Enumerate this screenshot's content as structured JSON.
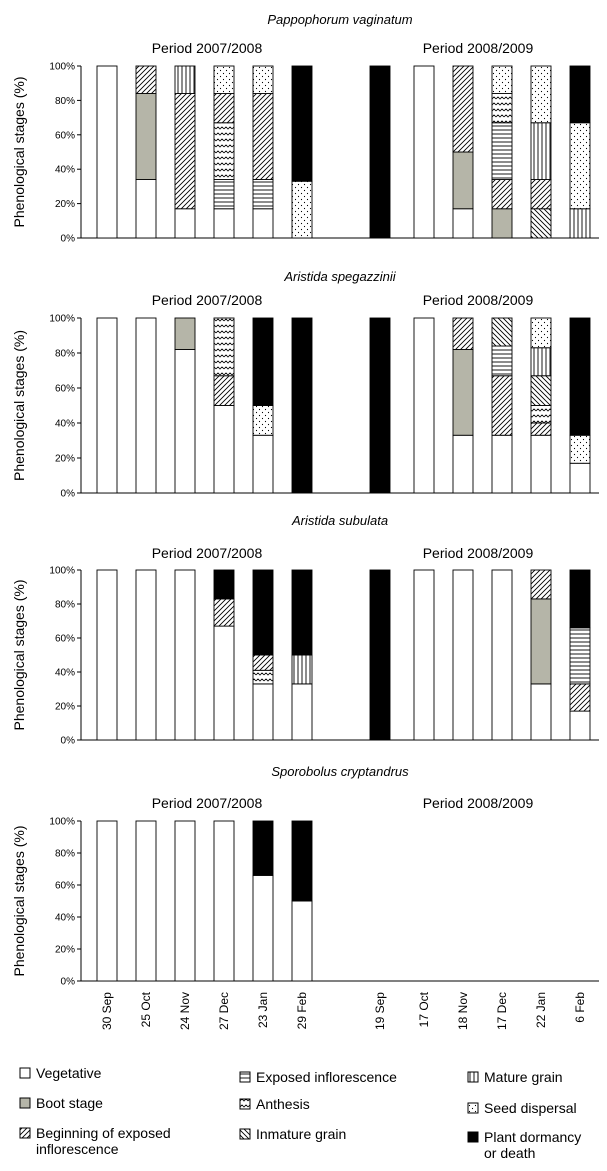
{
  "figure": {
    "dates": [
      "30 Sep",
      "25 Oct",
      "24 Nov",
      "27 Dec",
      "23 Jan",
      "29 Feb",
      "19 Sep",
      "17 Oct",
      "18 Nov",
      "17 Dec",
      "22 Jan",
      "6 Feb"
    ],
    "periods": [
      "Period 2007/2008",
      "Period 2008/2009"
    ]
  },
  "legend": [
    {
      "key": "veg",
      "label": "Vegetative",
      "label2": "",
      "pattern": "vegetative"
    },
    {
      "key": "boot",
      "label": "Boot stage",
      "label2": "",
      "pattern": "boot"
    },
    {
      "key": "beg",
      "label": "Beginning of exposed",
      "label2": "inflorescence",
      "pattern": "beginning-exposed"
    },
    {
      "key": "exp",
      "label": "Exposed inflorescence",
      "label2": "",
      "pattern": "exposed"
    },
    {
      "key": "anth",
      "label": "Anthesis",
      "label2": "",
      "pattern": "anthesis"
    },
    {
      "key": "imm",
      "label": "Inmature grain",
      "label2": "",
      "pattern": "immature"
    },
    {
      "key": "mat",
      "label": "Mature grain",
      "label2": "",
      "pattern": "mature"
    },
    {
      "key": "seed",
      "label": "Seed dispersal",
      "label2": "",
      "pattern": "seed"
    },
    {
      "key": "dorm",
      "label": "Plant dormancy",
      "label2": "or death",
      "pattern": "dormancy"
    }
  ],
  "chart_data": [
    {
      "type": "bar",
      "stacked": true,
      "title": "Pappophorum vaginatum",
      "ylabel": "Phenological stages (%)",
      "ylim": [
        0,
        100
      ],
      "yticks": [
        "0%",
        "20%",
        "40%",
        "60%",
        "80%",
        "100%"
      ],
      "period_labels": [
        "Period 2007/2008",
        "Period 2008/2009"
      ],
      "categories": [
        "30 Sep",
        "25 Oct",
        "24 Nov",
        "27 Dec",
        "23 Jan",
        "29 Feb",
        "19 Sep",
        "17 Oct",
        "18 Nov",
        "17 Dec",
        "22 Jan",
        "6 Feb"
      ],
      "bars": [
        [
          {
            "s": "veg",
            "v": 100
          }
        ],
        [
          {
            "s": "veg",
            "v": 34
          },
          {
            "s": "boot",
            "v": 50
          },
          {
            "s": "beg",
            "v": 16
          }
        ],
        [
          {
            "s": "veg",
            "v": 17
          },
          {
            "s": "beg",
            "v": 67
          },
          {
            "s": "mat",
            "v": 16
          }
        ],
        [
          {
            "s": "veg",
            "v": 17
          },
          {
            "s": "exp",
            "v": 17
          },
          {
            "s": "anth",
            "v": 33
          },
          {
            "s": "beg",
            "v": 17
          },
          {
            "s": "seed",
            "v": 16
          }
        ],
        [
          {
            "s": "veg",
            "v": 17
          },
          {
            "s": "exp",
            "v": 17
          },
          {
            "s": "beg",
            "v": 50
          },
          {
            "s": "seed",
            "v": 16
          }
        ],
        [
          {
            "s": "seed",
            "v": 33
          },
          {
            "s": "dorm",
            "v": 67
          }
        ],
        [
          {
            "s": "dorm",
            "v": 100
          }
        ],
        [
          {
            "s": "veg",
            "v": 100
          }
        ],
        [
          {
            "s": "veg",
            "v": 17
          },
          {
            "s": "boot",
            "v": 33
          },
          {
            "s": "beg",
            "v": 50
          }
        ],
        [
          {
            "s": "boot",
            "v": 17
          },
          {
            "s": "beg",
            "v": 17
          },
          {
            "s": "exp",
            "v": 33
          },
          {
            "s": "anth",
            "v": 17
          },
          {
            "s": "seed",
            "v": 16
          }
        ],
        [
          {
            "s": "imm",
            "v": 17
          },
          {
            "s": "beg",
            "v": 17
          },
          {
            "s": "mat",
            "v": 33
          },
          {
            "s": "seed",
            "v": 33
          }
        ],
        [
          {
            "s": "mat",
            "v": 17
          },
          {
            "s": "seed",
            "v": 50
          },
          {
            "s": "dorm",
            "v": 33
          }
        ]
      ]
    },
    {
      "type": "bar",
      "stacked": true,
      "title": "Aristida spegazzinii",
      "ylabel": "Phenological stages (%)",
      "ylim": [
        0,
        100
      ],
      "yticks": [
        "0%",
        "20%",
        "40%",
        "60%",
        "80%",
        "100%"
      ],
      "period_labels": [
        "Period 2007/2008",
        "Period 2008/2009"
      ],
      "categories": [
        "30 Sep",
        "25 Oct",
        "24 Nov",
        "27 Dec",
        "23 Jan",
        "29 Feb",
        "19 Sep",
        "17 Oct",
        "18 Nov",
        "17 Dec",
        "22 Jan",
        "6 Feb"
      ],
      "bars": [
        [
          {
            "s": "veg",
            "v": 100
          }
        ],
        [
          {
            "s": "veg",
            "v": 100
          }
        ],
        [
          {
            "s": "veg",
            "v": 82
          },
          {
            "s": "boot",
            "v": 18
          }
        ],
        [
          {
            "s": "veg",
            "v": 50
          },
          {
            "s": "beg",
            "v": 17
          },
          {
            "s": "anth",
            "v": 33
          }
        ],
        [
          {
            "s": "veg",
            "v": 33
          },
          {
            "s": "seed",
            "v": 17
          },
          {
            "s": "dorm",
            "v": 50
          }
        ],
        [
          {
            "s": "dorm",
            "v": 100
          }
        ],
        [
          {
            "s": "dorm",
            "v": 100
          }
        ],
        [
          {
            "s": "veg",
            "v": 100
          }
        ],
        [
          {
            "s": "veg",
            "v": 33
          },
          {
            "s": "boot",
            "v": 49
          },
          {
            "s": "beg",
            "v": 18
          }
        ],
        [
          {
            "s": "veg",
            "v": 33
          },
          {
            "s": "beg",
            "v": 34
          },
          {
            "s": "exp",
            "v": 17
          },
          {
            "s": "imm",
            "v": 16
          }
        ],
        [
          {
            "s": "veg",
            "v": 33
          },
          {
            "s": "beg",
            "v": 7
          },
          {
            "s": "anth",
            "v": 10
          },
          {
            "s": "imm",
            "v": 17
          },
          {
            "s": "mat",
            "v": 16
          },
          {
            "s": "seed",
            "v": 17
          }
        ],
        [
          {
            "s": "veg",
            "v": 17
          },
          {
            "s": "seed",
            "v": 16
          },
          {
            "s": "dorm",
            "v": 67
          }
        ]
      ]
    },
    {
      "type": "bar",
      "stacked": true,
      "title": "Aristida subulata",
      "ylabel": "Phenological stages (%)",
      "ylim": [
        0,
        100
      ],
      "yticks": [
        "0%",
        "20%",
        "40%",
        "60%",
        "80%",
        "100%"
      ],
      "period_labels": [
        "Period 2007/2008",
        "Period 2008/2009"
      ],
      "categories": [
        "30 Sep",
        "25 Oct",
        "24 Nov",
        "27 Dec",
        "23 Jan",
        "29 Feb",
        "19 Sep",
        "17 Oct",
        "18 Nov",
        "17 Dec",
        "22 Jan",
        "6 Feb"
      ],
      "bars": [
        [
          {
            "s": "veg",
            "v": 100
          }
        ],
        [
          {
            "s": "veg",
            "v": 100
          }
        ],
        [
          {
            "s": "veg",
            "v": 100
          }
        ],
        [
          {
            "s": "veg",
            "v": 67
          },
          {
            "s": "beg",
            "v": 16
          },
          {
            "s": "dorm",
            "v": 17
          }
        ],
        [
          {
            "s": "veg",
            "v": 33
          },
          {
            "s": "anth",
            "v": 8
          },
          {
            "s": "beg",
            "v": 9
          },
          {
            "s": "dorm",
            "v": 50
          }
        ],
        [
          {
            "s": "veg",
            "v": 33
          },
          {
            "s": "mat",
            "v": 17
          },
          {
            "s": "dorm",
            "v": 50
          }
        ],
        [
          {
            "s": "dorm",
            "v": 100
          }
        ],
        [
          {
            "s": "veg",
            "v": 100
          }
        ],
        [
          {
            "s": "veg",
            "v": 100
          }
        ],
        [
          {
            "s": "veg",
            "v": 100
          }
        ],
        [
          {
            "s": "veg",
            "v": 33
          },
          {
            "s": "boot",
            "v": 50
          },
          {
            "s": "beg",
            "v": 17
          }
        ],
        [
          {
            "s": "veg",
            "v": 17
          },
          {
            "s": "beg",
            "v": 16
          },
          {
            "s": "exp",
            "v": 33
          },
          {
            "s": "dorm",
            "v": 34
          }
        ]
      ]
    },
    {
      "type": "bar",
      "stacked": true,
      "title": "Sporobolus cryptandrus",
      "ylabel": "Phenological stages (%)",
      "ylim": [
        0,
        100
      ],
      "yticks": [
        "0%",
        "20%",
        "40%",
        "60%",
        "80%",
        "100%"
      ],
      "period_labels": [
        "Period 2007/2008",
        "Period 2008/2009"
      ],
      "categories": [
        "30 Sep",
        "25 Oct",
        "24 Nov",
        "27 Dec",
        "23 Jan",
        "29 Feb",
        "19 Sep",
        "17 Oct",
        "18 Nov",
        "17 Dec",
        "22 Jan",
        "6 Feb"
      ],
      "bars": [
        [
          {
            "s": "veg",
            "v": 100
          }
        ],
        [
          {
            "s": "veg",
            "v": 100
          }
        ],
        [
          {
            "s": "veg",
            "v": 100
          }
        ],
        [
          {
            "s": "veg",
            "v": 100
          }
        ],
        [
          {
            "s": "veg",
            "v": 66
          },
          {
            "s": "dorm",
            "v": 34
          }
        ],
        [
          {
            "s": "veg",
            "v": 50
          },
          {
            "s": "dorm",
            "v": 50
          }
        ],
        [],
        [],
        [],
        [],
        [],
        []
      ]
    }
  ]
}
